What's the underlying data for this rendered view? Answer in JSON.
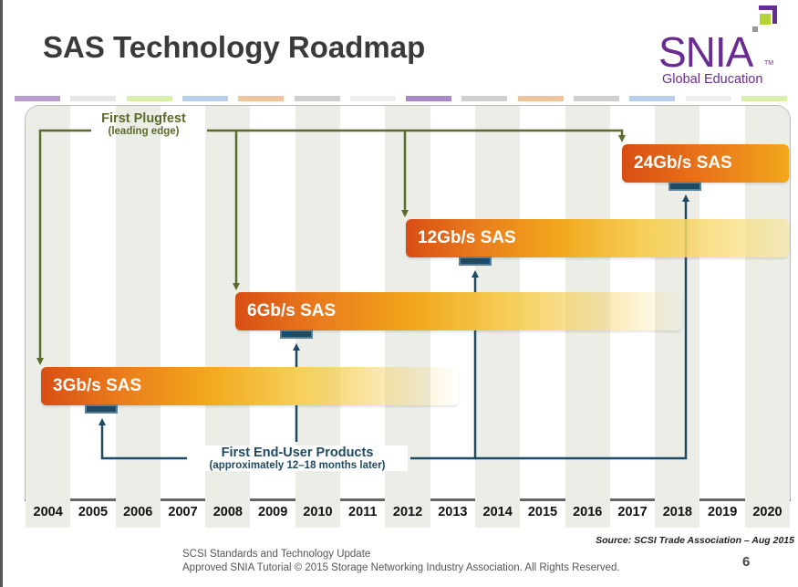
{
  "title": "SAS Technology Roadmap",
  "logo": {
    "text": "SNIA",
    "tm": "TM",
    "subtitle": "Global Education"
  },
  "colors": {
    "purple": "#6b2c91",
    "olive": "#5a6b2a",
    "orange_dark": "#d84e14",
    "orange_light": "#f2a81c",
    "tab": "#1f4a63"
  },
  "stripe_colors": [
    "#b99ccf",
    "#e6e6e6",
    "#d8f0a8",
    "#b8d0ee",
    "#f2c49c",
    "#d0d0d0",
    "#eeeeee",
    "#a888c8",
    "#d0d0d0",
    "#f2c49c",
    "#d0d0d0",
    "#b8d0ee",
    "#eeeeee",
    "#d8f0a8"
  ],
  "years": [
    "2004",
    "2005",
    "2006",
    "2007",
    "2008",
    "2009",
    "2010",
    "2011",
    "2012",
    "2013",
    "2014",
    "2015",
    "2016",
    "2017",
    "2018",
    "2019",
    "2020"
  ],
  "bars": [
    {
      "label": "3Gb/s SAS"
    },
    {
      "label": "6Gb/s SAS"
    },
    {
      "label": "12Gb/s SAS"
    },
    {
      "label": "24Gb/s SAS"
    }
  ],
  "plugfest": {
    "title": "First Plugfest",
    "subtitle": "(leading edge)"
  },
  "products": {
    "title": "First End-User Products",
    "subtitle": "(approximately 12–18 months later)"
  },
  "source": "Source:  SCSI Trade Association – Aug 2015",
  "footer": {
    "line1": "SCSI Standards and Technology Update",
    "line2": "Approved SNIA Tutorial © 2015 Storage Networking Industry Association. All Rights Reserved."
  },
  "page_number": "6"
}
